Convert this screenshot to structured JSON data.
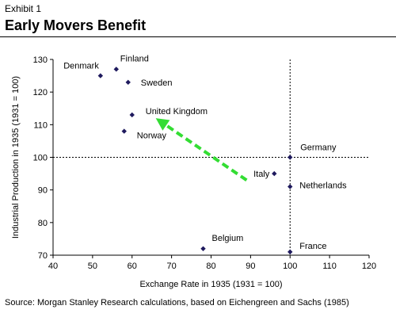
{
  "header": {
    "exhibit": "Exhibit 1",
    "title": "Early Movers Benefit"
  },
  "footer": {
    "source": "Source: Morgan Stanley Research calculations, based on Eichengreen and Sachs (1985)"
  },
  "chart_data": {
    "type": "scatter",
    "xlabel": "Exchange Rate in 1935 (1931 = 100)",
    "ylabel": "Industrial Production in 1935 (1931 = 100)",
    "xlim": [
      40,
      120
    ],
    "ylim": [
      70,
      130
    ],
    "xticks": [
      40,
      50,
      60,
      70,
      80,
      90,
      100,
      110,
      120
    ],
    "yticks": [
      70,
      80,
      90,
      100,
      110,
      120,
      130
    ],
    "grid": false,
    "reference_lines": {
      "x": 100,
      "y": 100,
      "style": "dotted"
    },
    "marker_color": "#1f1a5e",
    "arrow": {
      "from": [
        89,
        93
      ],
      "to": [
        66,
        112
      ],
      "color": "#33dd33",
      "style": "dashed"
    },
    "points": [
      {
        "label": "Finland",
        "x": 56,
        "y": 127
      },
      {
        "label": "Denmark",
        "x": 52,
        "y": 125
      },
      {
        "label": "Sweden",
        "x": 59,
        "y": 123
      },
      {
        "label": "United Kingdom",
        "x": 60,
        "y": 113
      },
      {
        "label": "Norway",
        "x": 58,
        "y": 108
      },
      {
        "label": "Germany",
        "x": 100,
        "y": 100
      },
      {
        "label": "Italy",
        "x": 96,
        "y": 95
      },
      {
        "label": "Netherlands",
        "x": 100,
        "y": 91
      },
      {
        "label": "Belgium",
        "x": 78,
        "y": 72
      },
      {
        "label": "France",
        "x": 100,
        "y": 71
      }
    ]
  }
}
